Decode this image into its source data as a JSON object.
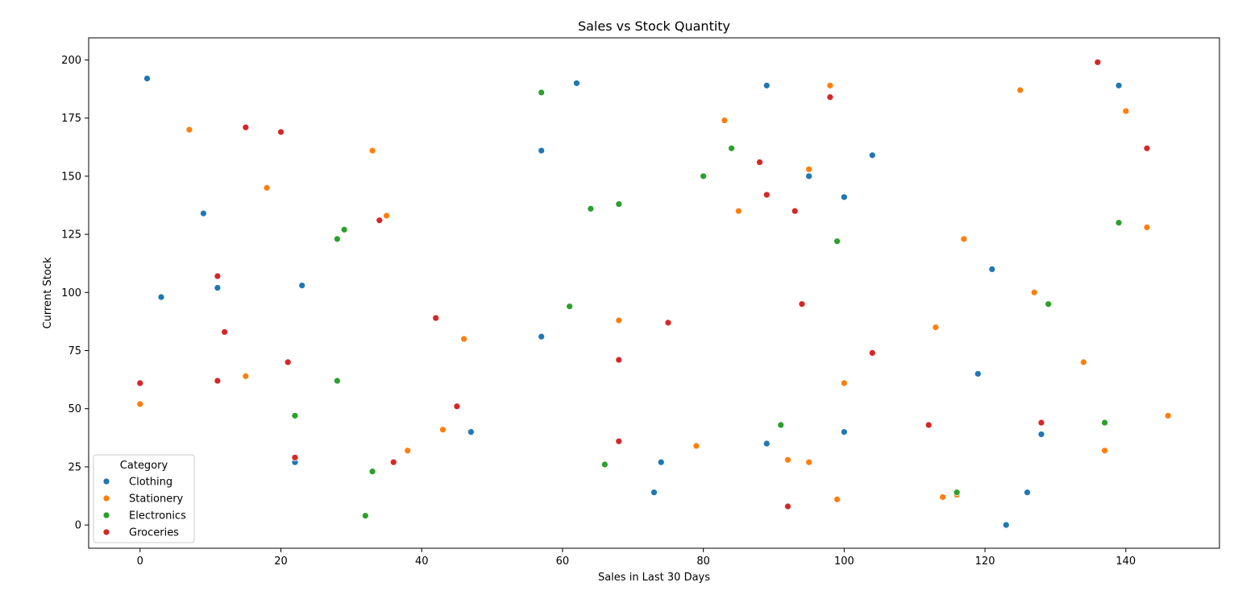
{
  "chart_data": {
    "type": "scatter",
    "title": "Sales vs Stock Quantity",
    "xlabel": "Sales in Last 30 Days",
    "ylabel": "Current Stock",
    "xlim": [
      -7.3,
      153.3
    ],
    "ylim": [
      -10,
      209.5
    ],
    "xticks": [
      0,
      20,
      40,
      60,
      80,
      100,
      120,
      140
    ],
    "yticks": [
      0,
      25,
      50,
      75,
      100,
      125,
      150,
      175,
      200
    ],
    "grid": false,
    "legend": {
      "title": "Category",
      "placement": "lower-left"
    },
    "series": [
      {
        "name": "Clothing",
        "color": "#1f77b4",
        "points": [
          [
            1,
            192
          ],
          [
            3,
            98
          ],
          [
            9,
            134
          ],
          [
            11,
            102
          ],
          [
            22,
            27
          ],
          [
            23,
            103
          ],
          [
            47,
            40
          ],
          [
            57,
            161
          ],
          [
            57,
            81
          ],
          [
            62,
            190
          ],
          [
            73,
            14
          ],
          [
            74,
            27
          ],
          [
            89,
            189
          ],
          [
            89,
            35
          ],
          [
            95,
            150
          ],
          [
            100,
            141
          ],
          [
            100,
            40
          ],
          [
            104,
            159
          ],
          [
            119,
            65
          ],
          [
            121,
            110
          ],
          [
            123,
            0
          ],
          [
            126,
            14
          ],
          [
            128,
            39
          ],
          [
            139,
            189
          ]
        ]
      },
      {
        "name": "Stationery",
        "color": "#ff7f0e",
        "points": [
          [
            0,
            52
          ],
          [
            7,
            170
          ],
          [
            15,
            64
          ],
          [
            18,
            145
          ],
          [
            33,
            161
          ],
          [
            35,
            133
          ],
          [
            38,
            32
          ],
          [
            43,
            41
          ],
          [
            46,
            80
          ],
          [
            68,
            88
          ],
          [
            79,
            34
          ],
          [
            83,
            174
          ],
          [
            85,
            135
          ],
          [
            92,
            28
          ],
          [
            95,
            153
          ],
          [
            95,
            27
          ],
          [
            98,
            189
          ],
          [
            99,
            11
          ],
          [
            100,
            61
          ],
          [
            113,
            85
          ],
          [
            114,
            12
          ],
          [
            116,
            13
          ],
          [
            117,
            123
          ],
          [
            125,
            187
          ],
          [
            127,
            100
          ],
          [
            134,
            70
          ],
          [
            137,
            32
          ],
          [
            140,
            178
          ],
          [
            143,
            128
          ],
          [
            146,
            47
          ]
        ]
      },
      {
        "name": "Electronics",
        "color": "#2ca02c",
        "points": [
          [
            22,
            47
          ],
          [
            28,
            123
          ],
          [
            28,
            62
          ],
          [
            29,
            127
          ],
          [
            32,
            4
          ],
          [
            33,
            23
          ],
          [
            57,
            186
          ],
          [
            61,
            94
          ],
          [
            64,
            136
          ],
          [
            66,
            26
          ],
          [
            68,
            138
          ],
          [
            80,
            150
          ],
          [
            84,
            162
          ],
          [
            91,
            43
          ],
          [
            99,
            122
          ],
          [
            116,
            14
          ],
          [
            129,
            95
          ],
          [
            137,
            44
          ],
          [
            139,
            130
          ]
        ]
      },
      {
        "name": "Groceries",
        "color": "#d62728",
        "points": [
          [
            0,
            61
          ],
          [
            11,
            107
          ],
          [
            11,
            62
          ],
          [
            12,
            83
          ],
          [
            15,
            171
          ],
          [
            20,
            169
          ],
          [
            21,
            70
          ],
          [
            22,
            29
          ],
          [
            34,
            131
          ],
          [
            36,
            27
          ],
          [
            42,
            89
          ],
          [
            45,
            51
          ],
          [
            68,
            71
          ],
          [
            68,
            36
          ],
          [
            75,
            87
          ],
          [
            88,
            156
          ],
          [
            89,
            142
          ],
          [
            92,
            8
          ],
          [
            93,
            135
          ],
          [
            94,
            95
          ],
          [
            98,
            184
          ],
          [
            104,
            74
          ],
          [
            112,
            43
          ],
          [
            128,
            44
          ],
          [
            136,
            199
          ],
          [
            143,
            162
          ]
        ]
      }
    ]
  }
}
